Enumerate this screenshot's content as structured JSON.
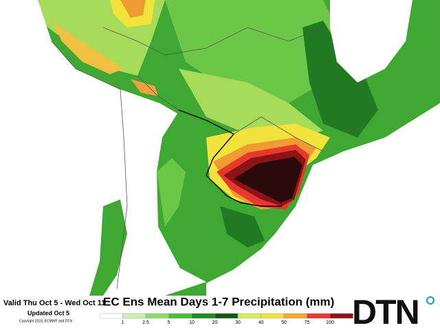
{
  "header": {
    "valid": "Valid Thu Oct 5 - Wed Oct 11",
    "updated": "Updated Oct 5",
    "copyright": "Copyright 2023, ECMWF and DTN",
    "title": "EC Ens Mean Days 1-7 Precipitation (mm)"
  },
  "legend": {
    "ticks": [
      "1",
      "2.5",
      "5",
      "10",
      "20",
      "30",
      "40",
      "50",
      "75",
      "100"
    ]
  },
  "logo": "DTN"
}
